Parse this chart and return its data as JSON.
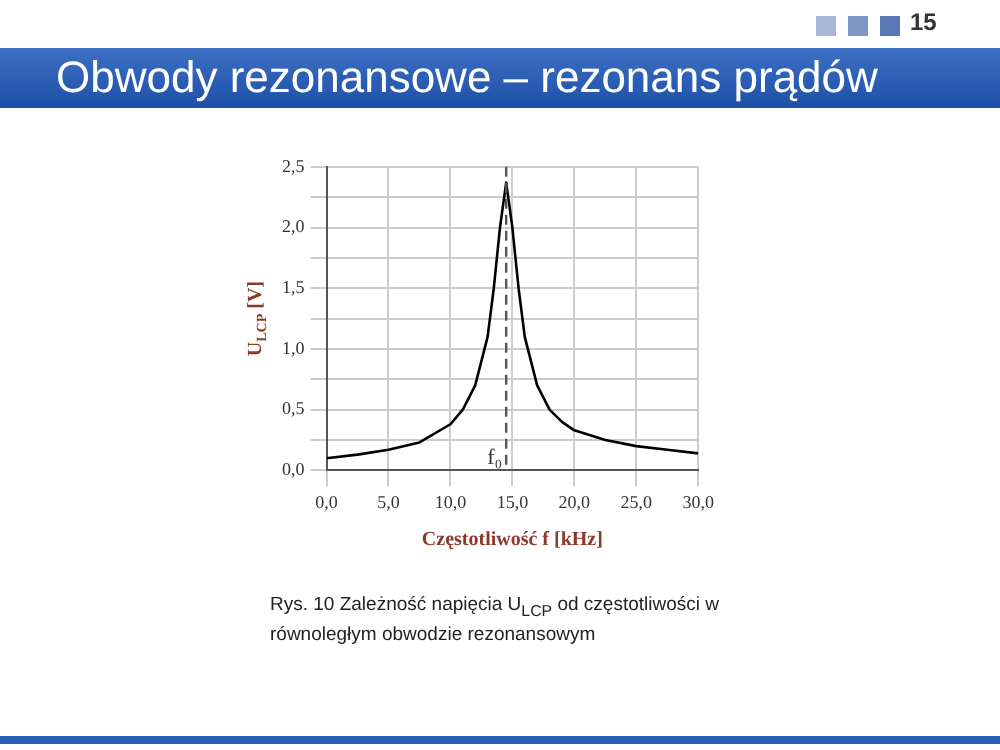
{
  "chart_data": {
    "type": "line",
    "title": "Obwody rezonansowe – rezonans prądów",
    "xlabel": "Częstotliwość f [kHz]",
    "ylabel": "U$_{LCP}$ [V]",
    "annotations": [
      "15",
      "Rys. 10  Zależność napięcia U$_{LCP}$ od częstotliwości w równoległym obwodzie rezonansowym"
    ],
    "x": [
      0,
      2.5,
      5,
      7.5,
      10,
      11,
      12,
      13,
      13.5,
      14,
      14.5,
      15,
      15.5,
      16,
      17,
      18,
      19,
      20,
      22.5,
      25,
      27.5,
      30
    ],
    "series": [
      {
        "color": "#000000",
        "values": [
          0.1,
          0.13,
          0.17,
          0.23,
          0.38,
          0.5,
          0.7,
          1.1,
          1.5,
          2.0,
          2.37,
          2.0,
          1.5,
          1.1,
          0.7,
          0.5,
          0.4,
          0.33,
          0.25,
          0.2,
          0.17,
          0.14
        ]
      }
    ],
    "xlim": [
      0,
      30
    ],
    "ylim": [
      0,
      2.5
    ],
    "xticks": [
      {
        "value": 0,
        "label": "0,0"
      },
      {
        "value": 5,
        "label": "5,0"
      },
      {
        "value": 10,
        "label": "10,0"
      },
      {
        "value": 15,
        "label": "15,0"
      },
      {
        "value": 20,
        "label": "20,0"
      },
      {
        "value": 25,
        "label": "25,0"
      },
      {
        "value": 30,
        "label": "30,0"
      }
    ],
    "yticks": [
      {
        "value": 0,
        "label": "0,0"
      },
      {
        "value": 0.25,
        "label": null
      },
      {
        "value": 0.5,
        "label": "0,5"
      },
      {
        "value": 0.75,
        "label": null
      },
      {
        "value": 1,
        "label": "1,0"
      },
      {
        "value": 1.25,
        "label": null
      },
      {
        "value": 1.5,
        "label": "1,5"
      },
      {
        "value": 1.75,
        "label": null
      },
      {
        "value": 2,
        "label": "2,0"
      },
      {
        "value": 2.25,
        "label": null
      },
      {
        "value": 2.5,
        "label": "2,5"
      }
    ],
    "ref_lines": [
      {
        "axis": "x",
        "value": 14.5,
        "label": "f₀",
        "line_style": "dashed",
        "color": "#555555"
      }
    ],
    "grid": true,
    "legend": false,
    "marker": "none",
    "line_style": "solid"
  }
}
